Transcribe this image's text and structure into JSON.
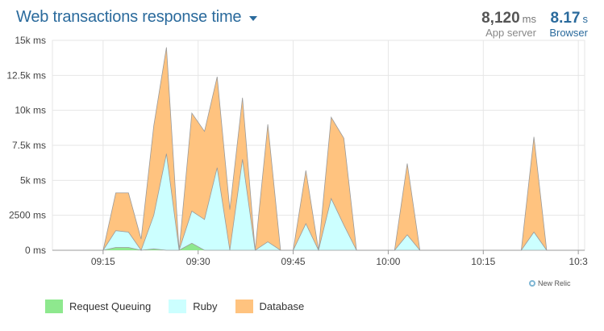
{
  "header": {
    "title": "Web transactions response time",
    "app_server": {
      "value": "8,120",
      "unit": "ms",
      "label": "App server"
    },
    "browser": {
      "value": "8.17",
      "unit": "s",
      "label": "Browser"
    }
  },
  "watermark": "New Relic",
  "colors": {
    "request_queuing": "#8ee88e",
    "ruby": "#ccffff",
    "database": "#ffc37f",
    "stroke": "#9a9a9a",
    "grid": "#e6e6e6",
    "title": "#2a6a9c"
  },
  "chart_data": {
    "type": "area",
    "stacked": true,
    "x": [
      "09:07",
      "09:09",
      "09:11",
      "09:13",
      "09:15",
      "09:17",
      "09:19",
      "09:21",
      "09:23",
      "09:25",
      "09:27",
      "09:29",
      "09:31",
      "09:33",
      "09:35",
      "09:37",
      "09:39",
      "09:41",
      "09:43",
      "09:45",
      "09:47",
      "09:49",
      "09:51",
      "09:53",
      "09:55",
      "09:57",
      "09:59",
      "10:01",
      "10:03",
      "10:05",
      "10:07",
      "10:09",
      "10:11",
      "10:13",
      "10:15",
      "10:17",
      "10:19",
      "10:21",
      "10:23",
      "10:25",
      "10:27",
      "10:29",
      "10:31"
    ],
    "x_ticks": [
      "09:15",
      "09:30",
      "09:45",
      "10:00",
      "10:15",
      "10:3"
    ],
    "y_ticks": [
      "0 ms",
      "2500 ms",
      "5k ms",
      "7.5k ms",
      "10k ms",
      "12.5k ms",
      "15k ms"
    ],
    "ylim": [
      0,
      15000
    ],
    "legend_position": "bottom-left",
    "grid": true,
    "series": [
      {
        "name": "Request Queuing",
        "values": [
          0,
          0,
          0,
          0,
          0,
          200,
          200,
          0,
          100,
          0,
          0,
          500,
          0,
          0,
          0,
          0,
          0,
          0,
          0,
          0,
          0,
          0,
          0,
          0,
          0,
          0,
          0,
          0,
          0,
          0,
          0,
          0,
          0,
          0,
          0,
          0,
          0,
          0,
          0,
          0,
          0,
          0,
          0
        ]
      },
      {
        "name": "Ruby",
        "values": [
          0,
          0,
          0,
          0,
          0,
          1200,
          1100,
          0,
          2400,
          6900,
          0,
          2300,
          2200,
          5900,
          0,
          6500,
          0,
          600,
          0,
          0,
          1900,
          0,
          3700,
          1800,
          0,
          0,
          0,
          0,
          1100,
          0,
          0,
          0,
          0,
          0,
          0,
          0,
          0,
          0,
          1300,
          0,
          0,
          0,
          0
        ]
      },
      {
        "name": "Database",
        "values": [
          0,
          0,
          0,
          0,
          0,
          2700,
          2800,
          800,
          6400,
          7600,
          0,
          7000,
          6300,
          6500,
          2900,
          4400,
          0,
          8400,
          0,
          0,
          3800,
          0,
          5800,
          6200,
          0,
          0,
          0,
          0,
          5100,
          0,
          0,
          0,
          0,
          0,
          0,
          0,
          0,
          0,
          6800,
          0,
          0,
          0,
          0
        ]
      }
    ]
  }
}
